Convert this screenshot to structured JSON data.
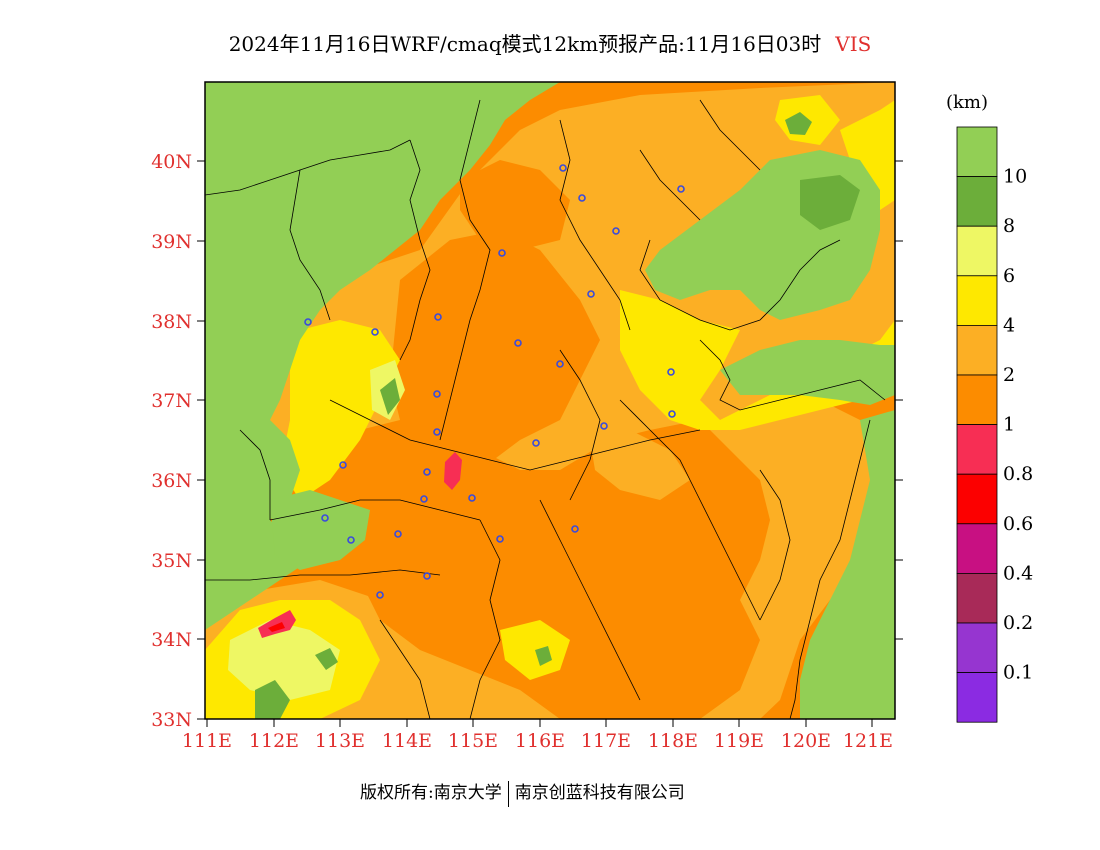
{
  "title": {
    "main": "2024年11月16日WRF/cmaq模式12km预报产品:11月16日03时",
    "variable": "VIS"
  },
  "axes": {
    "lat_labels": [
      "40N",
      "39N",
      "38N",
      "37N",
      "36N",
      "35N",
      "34N",
      "33N"
    ],
    "lon_labels": [
      "111E",
      "112E",
      "113E",
      "114E",
      "115E",
      "116E",
      "117E",
      "118E",
      "119E",
      "120E",
      "121E"
    ]
  },
  "colorbar": {
    "unit": "(km)",
    "labels": [
      "10",
      "8",
      "6",
      "4",
      "2",
      "1",
      "0.8",
      "0.6",
      "0.4",
      "0.2",
      "0.1"
    ],
    "colors": [
      "#92cf55",
      "#6cae3a",
      "#eef764",
      "#fee800",
      "#fcaf24",
      "#fc8c00",
      "#f72e54",
      "#fc0000",
      "#c81082",
      "#a82a58",
      "#9635d0",
      "#8b2be2"
    ]
  },
  "footer": {
    "copyright": "版权所有:南京大学",
    "company": "南京创蓝科技有限公司"
  },
  "colors": {
    "axis_label": "#e0302e",
    "title_text": "#000000",
    "map_border": "#000000",
    "station_marker": "#3a4bdc"
  }
}
